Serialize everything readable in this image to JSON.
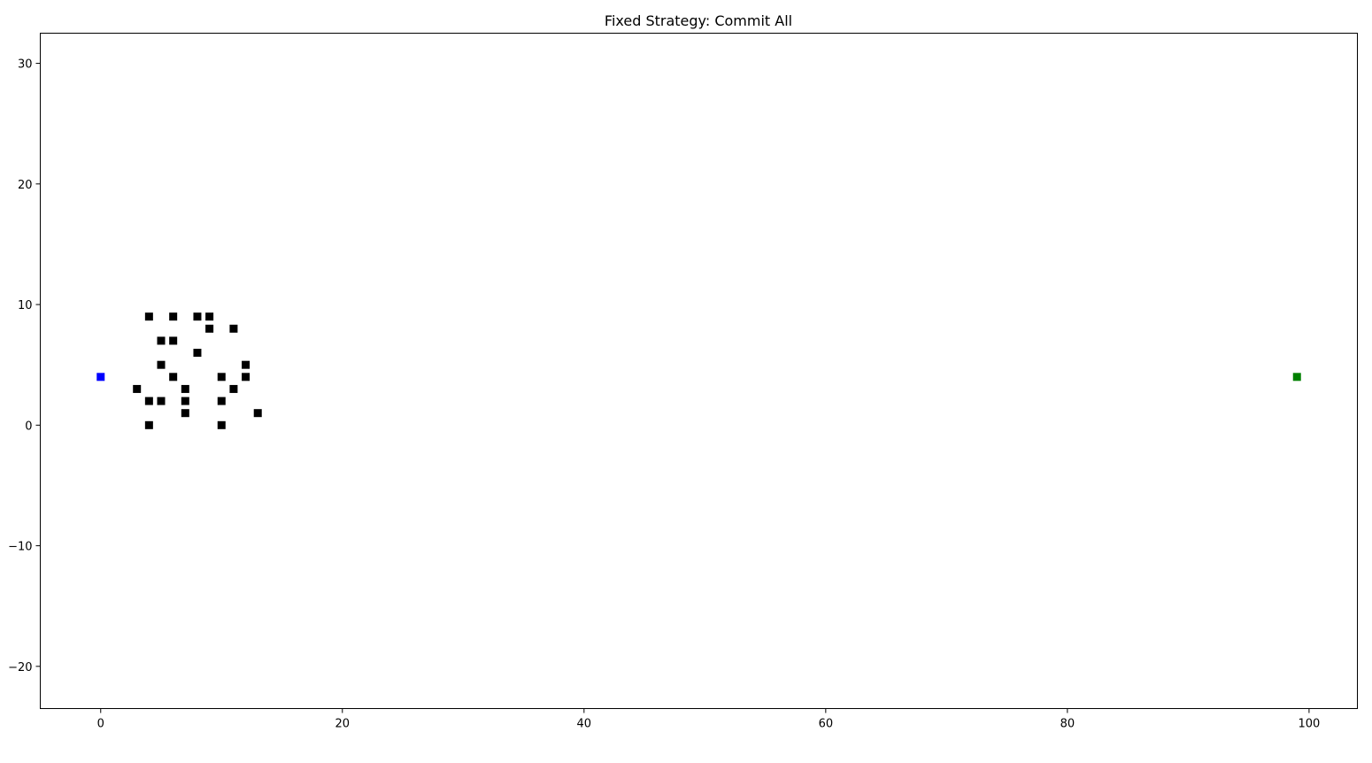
{
  "chart_data": {
    "type": "scatter",
    "title": "Fixed Strategy: Commit All",
    "xlabel": "",
    "ylabel": "",
    "xlim": [
      -5,
      104
    ],
    "ylim": [
      -23.5,
      32.5
    ],
    "xticks": [
      0,
      20,
      40,
      60,
      80,
      100
    ],
    "yticks": [
      -20,
      -10,
      0,
      10,
      20,
      30
    ],
    "grid": false,
    "marker": "square",
    "series": [
      {
        "color": "#000000",
        "points": [
          [
            4,
            9
          ],
          [
            6,
            9
          ],
          [
            8,
            9
          ],
          [
            9,
            9
          ],
          [
            9,
            8
          ],
          [
            11,
            8
          ],
          [
            5,
            7
          ],
          [
            6,
            7
          ],
          [
            8,
            6
          ],
          [
            5,
            5
          ],
          [
            12,
            5
          ],
          [
            6,
            4
          ],
          [
            10,
            4
          ],
          [
            12,
            4
          ],
          [
            3,
            3
          ],
          [
            7,
            3
          ],
          [
            11,
            3
          ],
          [
            4,
            2
          ],
          [
            5,
            2
          ],
          [
            7,
            2
          ],
          [
            10,
            2
          ],
          [
            7,
            1
          ],
          [
            13,
            1
          ],
          [
            4,
            0
          ],
          [
            10,
            0
          ]
        ]
      },
      {
        "color": "#0000ff",
        "points": [
          [
            0,
            4
          ]
        ]
      },
      {
        "color": "#008000",
        "points": [
          [
            99,
            4
          ]
        ]
      }
    ]
  }
}
